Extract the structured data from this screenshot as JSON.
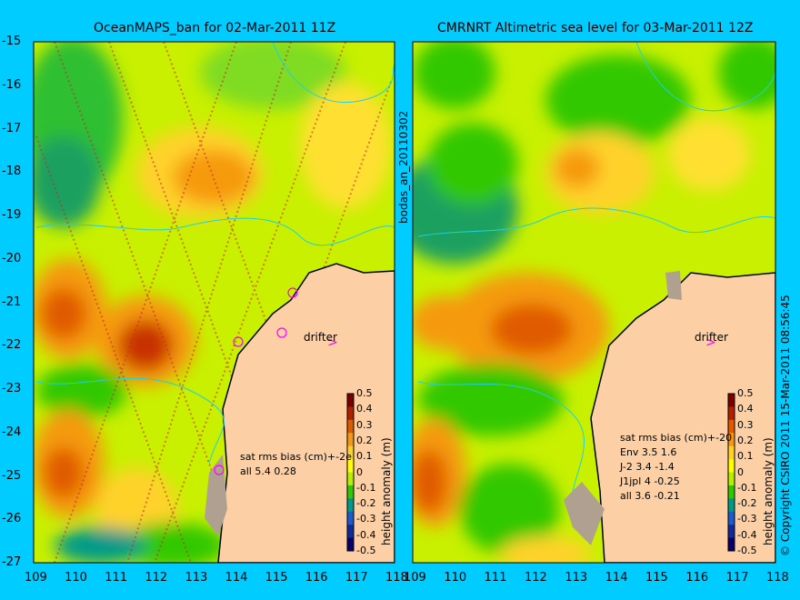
{
  "left_map": {
    "title": "OceanMAPS_ban for 02-Mar-2011 11Z",
    "stats_lines": [
      "sat rms bias (cm)+-2e",
      "all 5.4 0.28"
    ],
    "drifter_label": "drifter"
  },
  "right_map": {
    "title": "CMRNRT Altimetric sea level  for 03-Mar-2011 12Z",
    "stats_lines": [
      "sat rms bias (cm)+-20",
      "Env   3.5 1.6",
      "J-2   3.4 -1.4",
      "J1jpl 4 -0.25",
      "all 3.6 -0.21"
    ],
    "drifter_label": "drifter"
  },
  "side_label_middle": "bodas_an_20110302",
  "side_label_right": "© Copyright CSIRO 2011   15-Mar-2011 08:56:45",
  "colorbar": {
    "label": "height anomaly (m)",
    "ticks": [
      "0.5",
      "0.4",
      "0.3",
      "0.2",
      "0.1",
      "0",
      "-0.1",
      "-0.2",
      "-0.3",
      "-0.4",
      "-0.5"
    ],
    "colors": [
      "#7a0000",
      "#b22000",
      "#e05a00",
      "#f59a10",
      "#ffd22a",
      "#ffff00",
      "#b4f000",
      "#32c800",
      "#009a8a",
      "#1c5ad0",
      "#102a9c",
      "#0a006a"
    ]
  },
  "y_ticks": [
    "-15",
    "-16",
    "-17",
    "-18",
    "-19",
    "-20",
    "-21",
    "-22",
    "-23",
    "-24",
    "-25",
    "-26",
    "-27"
  ],
  "x_ticks": [
    "109",
    "110",
    "111",
    "112",
    "113",
    "114",
    "115",
    "116",
    "117",
    "118"
  ],
  "colors": {
    "background": "#00ccff",
    "land": "#fcd0a4",
    "coast": "#000000",
    "drifter_marker": "#ff00ff"
  }
}
